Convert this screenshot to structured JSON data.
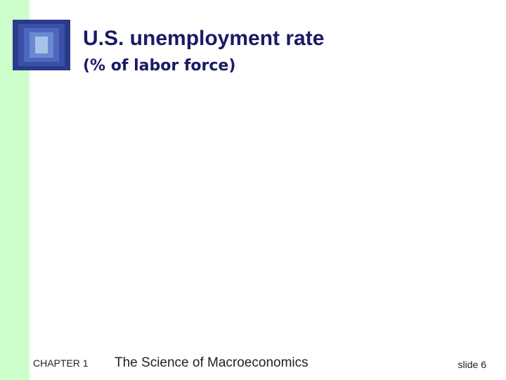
{
  "header": {
    "title": "U.S. unemployment rate",
    "subtitle": "(% of labor force)"
  },
  "footer": {
    "chapter": "CHAPTER 1",
    "book": "The Science of Macroeconomics",
    "slide": "slide 6"
  }
}
